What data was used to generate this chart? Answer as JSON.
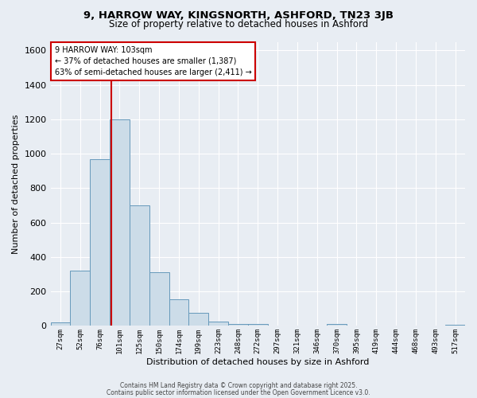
{
  "title": "9, HARROW WAY, KINGSNORTH, ASHFORD, TN23 3JB",
  "subtitle": "Size of property relative to detached houses in Ashford",
  "xlabel": "Distribution of detached houses by size in Ashford",
  "ylabel": "Number of detached properties",
  "bin_labels": [
    "27sqm",
    "52sqm",
    "76sqm",
    "101sqm",
    "125sqm",
    "150sqm",
    "174sqm",
    "199sqm",
    "223sqm",
    "248sqm",
    "272sqm",
    "297sqm",
    "321sqm",
    "346sqm",
    "370sqm",
    "395sqm",
    "419sqm",
    "444sqm",
    "468sqm",
    "493sqm",
    "517sqm"
  ],
  "bar_values": [
    20,
    320,
    970,
    1200,
    700,
    310,
    155,
    75,
    25,
    10,
    10,
    0,
    0,
    0,
    10,
    0,
    0,
    0,
    0,
    0,
    5
  ],
  "bar_color": "#ccdce8",
  "bar_edge_color": "#6699bb",
  "background_color": "#e8edf3",
  "grid_color": "#ffffff",
  "ylim": [
    0,
    1650
  ],
  "yticks": [
    0,
    200,
    400,
    600,
    800,
    1000,
    1200,
    1400,
    1600
  ],
  "property_line_color": "#cc0000",
  "annotation_title": "9 HARROW WAY: 103sqm",
  "annotation_line1": "← 37% of detached houses are smaller (1,387)",
  "annotation_line2": "63% of semi-detached houses are larger (2,411) →",
  "annotation_box_color": "#ffffff",
  "annotation_box_edge": "#cc0000",
  "footer1": "Contains HM Land Registry data © Crown copyright and database right 2025.",
  "footer2": "Contains public sector information licensed under the Open Government Licence v3.0."
}
